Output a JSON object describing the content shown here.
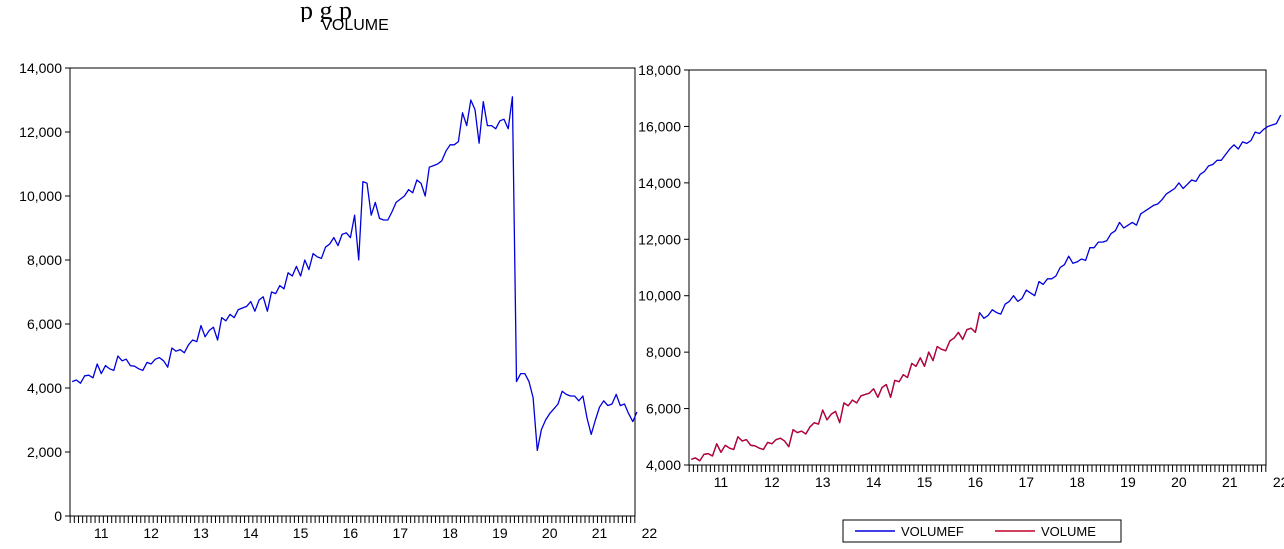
{
  "page": {
    "caption_fragment": "p                                  g        p"
  },
  "colors": {
    "blue": "#0000dd",
    "red": "#c0002a",
    "axis": "#000000"
  },
  "chart_data": [
    {
      "type": "line",
      "title": "VOLUME",
      "x_tick_labels": [
        "11",
        "12",
        "13",
        "14",
        "15",
        "16",
        "17",
        "18",
        "19",
        "20",
        "21",
        "22"
      ],
      "x_range": [
        2010.83,
        2022.17
      ],
      "ylim": [
        0,
        14000
      ],
      "y_ticks": [
        0,
        2000,
        4000,
        6000,
        8000,
        10000,
        12000,
        14000
      ],
      "y_tick_labels": [
        "0",
        "2,000",
        "4,000",
        "6,000",
        "8,000",
        "10,000",
        "12,000",
        "14,000"
      ],
      "grid": false,
      "series": [
        {
          "name": "VOLUME",
          "color": "#0000dd",
          "start": [
            2010,
            11
          ],
          "frequency": "monthly",
          "values": [
            4200,
            4250,
            4150,
            4380,
            4400,
            4320,
            4750,
            4450,
            4700,
            4600,
            4550,
            5000,
            4850,
            4900,
            4700,
            4680,
            4600,
            4550,
            4800,
            4750,
            4900,
            4950,
            4850,
            4650,
            5250,
            5150,
            5200,
            5100,
            5350,
            5500,
            5450,
            5950,
            5600,
            5800,
            5900,
            5500,
            6200,
            6100,
            6300,
            6200,
            6450,
            6500,
            6550,
            6700,
            6400,
            6750,
            6850,
            6400,
            7000,
            6950,
            7200,
            7100,
            7600,
            7500,
            7800,
            7500,
            8000,
            7700,
            8200,
            8100,
            8050,
            8400,
            8500,
            8700,
            8450,
            8800,
            8850,
            8700,
            9400,
            8000,
            10450,
            10400,
            9400,
            9800,
            9300,
            9250,
            9250,
            9500,
            9800,
            9900,
            10000,
            10200,
            10100,
            10500,
            10400,
            10000,
            10900,
            10950,
            11000,
            11100,
            11400,
            11600,
            11600,
            11700,
            12600,
            12200,
            13000,
            12700,
            11650,
            12950,
            12200,
            12200,
            12100,
            12350,
            12400,
            12100,
            13100,
            4200,
            4450,
            4450,
            4200,
            3700,
            2050,
            2700,
            3000,
            3200,
            3350,
            3500,
            3900,
            3800,
            3750,
            3750,
            3600,
            3750,
            3050,
            2550,
            3000,
            3400,
            3600,
            3450,
            3500,
            3800,
            3450,
            3500,
            3200,
            2950,
            3250
          ]
        }
      ]
    },
    {
      "type": "line",
      "title": "",
      "x_tick_labels": [
        "11",
        "12",
        "13",
        "14",
        "15",
        "16",
        "17",
        "18",
        "19",
        "20",
        "21",
        "22"
      ],
      "x_range": [
        2010.83,
        2022.17
      ],
      "ylim": [
        4000,
        18000
      ],
      "y_ticks": [
        4000,
        6000,
        8000,
        10000,
        12000,
        14000,
        16000,
        18000
      ],
      "y_tick_labels": [
        "4,000",
        "6,000",
        "8,000",
        "10,000",
        "12,000",
        "14,000",
        "16,000",
        "18,000"
      ],
      "grid": false,
      "legend": {
        "position": "bottom",
        "items": [
          "VOLUMEF",
          "VOLUME"
        ]
      },
      "series": [
        {
          "name": "VOLUMEF",
          "color": "#0000dd",
          "start": [
            2010,
            11
          ],
          "frequency": "monthly",
          "values": [
            4200,
            4250,
            4150,
            4380,
            4400,
            4320,
            4750,
            4450,
            4700,
            4600,
            4550,
            5000,
            4850,
            4900,
            4700,
            4680,
            4600,
            4550,
            4800,
            4750,
            4900,
            4950,
            4850,
            4650,
            5250,
            5150,
            5200,
            5100,
            5350,
            5500,
            5450,
            5950,
            5600,
            5800,
            5900,
            5500,
            6200,
            6100,
            6300,
            6200,
            6450,
            6500,
            6550,
            6700,
            6400,
            6750,
            6850,
            6400,
            7000,
            6950,
            7200,
            7100,
            7600,
            7500,
            7800,
            7500,
            8000,
            7700,
            8200,
            8100,
            8050,
            8400,
            8500,
            8700,
            8450,
            8800,
            8850,
            8700,
            9400,
            9200,
            9300,
            9500,
            9400,
            9350,
            9700,
            9800,
            10000,
            9800,
            9900,
            10200,
            10100,
            10000,
            10500,
            10400,
            10600,
            10600,
            10700,
            11000,
            11100,
            11400,
            11150,
            11200,
            11300,
            11250,
            11700,
            11700,
            11900,
            11900,
            11950,
            12200,
            12300,
            12600,
            12400,
            12500,
            12600,
            12500,
            12900,
            13000,
            13100,
            13200,
            13250,
            13400,
            13600,
            13700,
            13800,
            14000,
            13800,
            13950,
            14100,
            14050,
            14300,
            14400,
            14600,
            14650,
            14800,
            14800,
            15000,
            15200,
            15350,
            15200,
            15450,
            15400,
            15500,
            15800,
            15750,
            15900,
            16000,
            16050,
            16100,
            16400
          ]
        },
        {
          "name": "VOLUME",
          "color": "#c0002a",
          "start": [
            2010,
            11
          ],
          "frequency": "monthly",
          "values": [
            4200,
            4250,
            4150,
            4380,
            4400,
            4320,
            4750,
            4450,
            4700,
            4600,
            4550,
            5000,
            4850,
            4900,
            4700,
            4680,
            4600,
            4550,
            4800,
            4750,
            4900,
            4950,
            4850,
            4650,
            5250,
            5150,
            5200,
            5100,
            5350,
            5500,
            5450,
            5950,
            5600,
            5800,
            5900,
            5500,
            6200,
            6100,
            6300,
            6200,
            6450,
            6500,
            6550,
            6700,
            6400,
            6750,
            6850,
            6400,
            7000,
            6950,
            7200,
            7100,
            7600,
            7500,
            7800,
            7500,
            8000,
            7700,
            8200,
            8100,
            8050,
            8400,
            8500,
            8700,
            8450,
            8800,
            8850,
            8700,
            9400
          ]
        }
      ]
    }
  ]
}
